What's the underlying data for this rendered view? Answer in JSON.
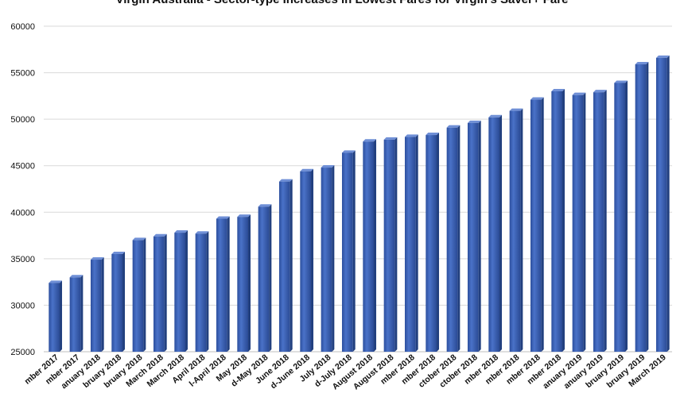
{
  "chart_data": {
    "type": "bar",
    "title": "Virgin Australia - Sector-type Increases in Lowest Fares for Virgin's Saver+ Fare",
    "xlabel": "",
    "ylabel": "",
    "ylim": [
      25000,
      60000
    ],
    "yticks": [
      25000,
      30000,
      35000,
      40000,
      45000,
      50000,
      55000,
      60000
    ],
    "grid": true,
    "legend": "none",
    "bar_color": "#3a5fb5",
    "categories": [
      "mber 2017",
      "mber 2017",
      "anuary 2018",
      "bruary 2018",
      "bruary 2018",
      "March 2018",
      "March 2018",
      "April 2018",
      "l-April 2018",
      "May 2018",
      "d-May 2018",
      "June 2018",
      "d-June 2018",
      "July 2018",
      "d-July 2018",
      "August 2018",
      "August 2018",
      "mber 2018",
      "mber 2018",
      "ctober 2018",
      "ctober 2018",
      "mber 2018",
      "mber 2018",
      "mber 2018",
      "mber 2018",
      "anuary 2019",
      "anuary 2019",
      "bruary 2019",
      "bruary 2019",
      "March 2019"
    ],
    "values": [
      32400,
      33000,
      34900,
      35500,
      37000,
      37400,
      37800,
      37700,
      39300,
      39500,
      40600,
      43300,
      44400,
      44800,
      46400,
      47600,
      47800,
      48100,
      48300,
      49100,
      49600,
      50200,
      50900,
      52100,
      53000,
      52600,
      52900,
      53900,
      55900,
      56600
    ]
  }
}
